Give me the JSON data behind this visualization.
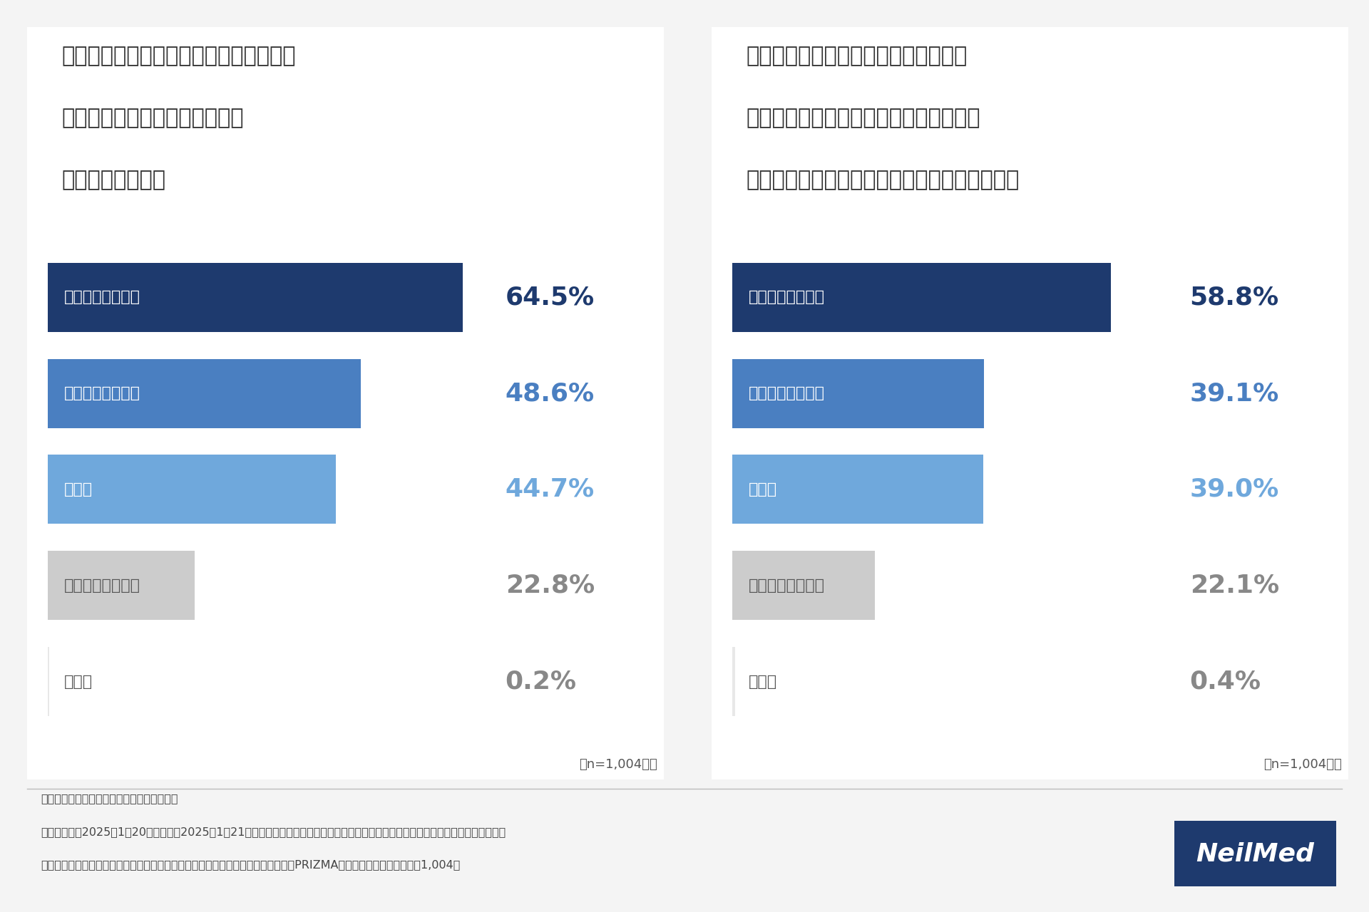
{
  "left_title_lines": [
    "人体で冬に流行る感染症などによる菌が",
    "付着しやすいのはどこですか？",
    "　（複数回答可）"
  ],
  "right_title_lines": [
    "冬に流行る感染症などによる菌が付着",
    "しやすい場所の中で、感染予防が見落と",
    "されがちな場所はどこですか？（複数回答可）"
  ],
  "left_data": {
    "labels": [
      "鼻腔内（鼻の中）",
      "口腔内（口の中）",
      "上咽頭",
      "手、指先、爪の間",
      "その他"
    ],
    "values": [
      64.5,
      48.6,
      44.7,
      22.8,
      0.2
    ],
    "pct_labels": [
      "64.5%",
      "48.6%",
      "44.7%",
      "22.8%",
      "0.2%"
    ],
    "bar_colors": [
      "#1e3a6e",
      "#4a7fc1",
      "#6fa8dc",
      "#cccccc",
      "#e8e8e8"
    ],
    "label_in_bar_colors": [
      "white",
      "white",
      "white",
      "#555555",
      "#555555"
    ],
    "pct_colors": [
      "#1e3a6e",
      "#4a7fc1",
      "#6fa8dc",
      "#888888",
      "#888888"
    ]
  },
  "right_data": {
    "labels": [
      "鼻腔内（鼻の中）",
      "口腔内（口の中）",
      "上咽頭",
      "手、指先、爪の間",
      "その他"
    ],
    "values": [
      58.8,
      39.1,
      39.0,
      22.1,
      0.4
    ],
    "pct_labels": [
      "58.8%",
      "39.1%",
      "39.0%",
      "22.1%",
      "0.4%"
    ],
    "bar_colors": [
      "#1e3a6e",
      "#4a7fc1",
      "#6fa8dc",
      "#cccccc",
      "#e8e8e8"
    ],
    "label_in_bar_colors": [
      "white",
      "white",
      "white",
      "#555555",
      "#555555"
    ],
    "pct_colors": [
      "#1e3a6e",
      "#4a7fc1",
      "#6fa8dc",
      "#888888",
      "#888888"
    ]
  },
  "n_label": "（n=1,004人）",
  "bg_color": "#f4f4f4",
  "panel_bg": "#ffffff",
  "divider_color": "#bbbbbb",
  "footer_lines": [
    "《調査概要：「感染症予防」に関する調査》",
    "・調査期間：2025年1月20日（月）～2025年1月21日（火）　　・調査方法：インターネット調査　　・調査元：ニールメッド株式会社",
    "・調査対象：調査回答時に内科医と回答したモニター　　　　・モニター提供元：PRIZMAリサーチ　　・調査人数：1,004人"
  ],
  "neilmed_bg": "#1e3a6e",
  "neilmed_text": "NeilMed",
  "title_fontsize": 22,
  "bar_label_fontsize": 16,
  "pct_fontsize": 26,
  "footer_fontsize": 11.5,
  "n_fontsize": 13
}
